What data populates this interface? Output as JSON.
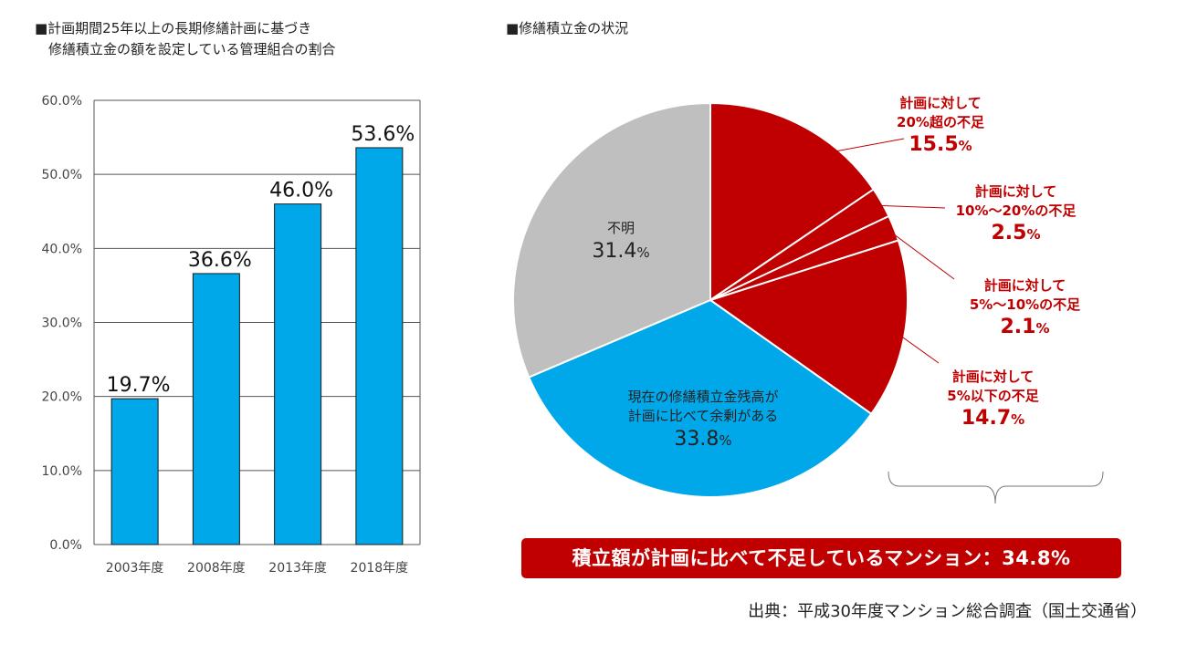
{
  "left_title": "■計画期間25年以上の長期修繕計画に基づき\n　修繕積立金の額を設定している管理組合の割合",
  "right_title": "■修繕積立金の状況",
  "banner": "積立額が計画に比べて不足しているマンション：34.8%",
  "source": "出典：平成30年度マンション総合調査（国土交通省）",
  "colors": {
    "bar": "#00a7e9",
    "deficit": "#c00000",
    "surplus": "#00a7e9",
    "unknown": "#bfbfbf",
    "axis": "#666666"
  },
  "chart_data": [
    {
      "type": "bar",
      "categories": [
        "2003年度",
        "2008年度",
        "2013年度",
        "2018年度"
      ],
      "values": [
        19.7,
        36.6,
        46.0,
        53.6
      ],
      "value_labels": [
        "19.7%",
        "36.6%",
        "46.0%",
        "53.6%"
      ],
      "y_ticks": [
        "0.0%",
        "10.0%",
        "20.0%",
        "30.0%",
        "40.0%",
        "50.0%",
        "60.0%"
      ],
      "ylim": [
        0,
        60
      ],
      "grid": true
    },
    {
      "type": "pie",
      "slices": [
        {
          "label_lines": [
            "計画に対して",
            "20%超の不足"
          ],
          "value": 15.5,
          "pct": "15.5",
          "group": "deficit"
        },
        {
          "label_lines": [
            "計画に対して",
            "10%〜20%の不足"
          ],
          "value": 2.5,
          "pct": "2.5",
          "group": "deficit"
        },
        {
          "label_lines": [
            "計画に対して",
            "5%〜10%の不足"
          ],
          "value": 2.1,
          "pct": "2.1",
          "group": "deficit"
        },
        {
          "label_lines": [
            "計画に対して",
            "5%以下の不足"
          ],
          "value": 14.7,
          "pct": "14.7",
          "group": "deficit"
        },
        {
          "label_lines": [
            "現在の修繕積立金残高が",
            "計画に比べて余剰がある"
          ],
          "value": 33.8,
          "pct": "33.8",
          "group": "surplus"
        },
        {
          "label_lines": [
            "不明"
          ],
          "value": 31.4,
          "pct": "31.4",
          "group": "unknown"
        }
      ],
      "pct_suffix": "%"
    }
  ]
}
